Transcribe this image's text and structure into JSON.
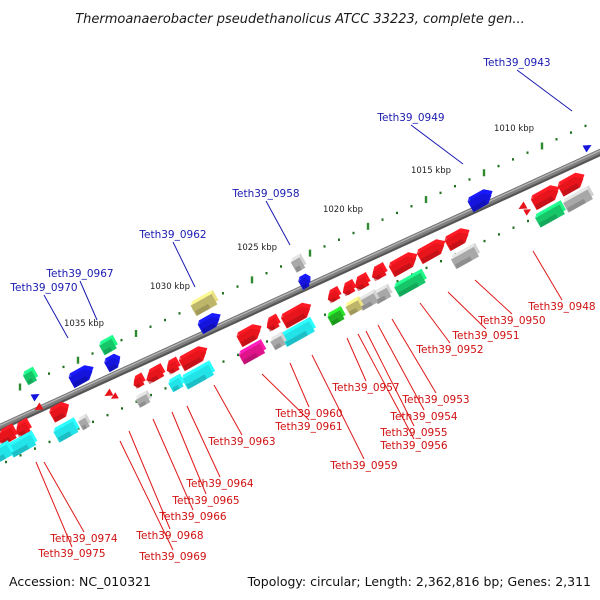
{
  "title": "Thermoanaerobacter pseudethanolicus ATCC 33223, complete gen...",
  "footer": {
    "accession": "Accession: NC_010321",
    "topology": "Topology: circular; Length: 2,362,816 bp; Genes: 2,311"
  },
  "colors": {
    "red": "#e8141c",
    "cyan": "#22e3e8",
    "blue": "#1414dd",
    "green": "#18c66a",
    "gray": "#a8a8a8",
    "olive": "#bdb56a",
    "magenta": "#e0148a",
    "leaf_green": "#22b322",
    "backbone": "#808080",
    "label_blue": "#1a1ab0",
    "label_red": "#d01010"
  },
  "scale_labels": [
    "1010 kbp",
    "1015 kbp",
    "1020 kbp",
    "1025 kbp",
    "1030 kbp",
    "1035 kbp"
  ],
  "top_labels": [
    "Teth39_0943",
    "Teth39_0949",
    "Teth39_0958",
    "Teth39_0962",
    "Teth39_0967",
    "Teth39_0970"
  ],
  "bottom_labels": [
    "Teth39_0948",
    "Teth39_0950",
    "Teth39_0951",
    "Teth39_0952",
    "Teth39_0953",
    "Teth39_0954",
    "Teth39_0955",
    "Teth39_0956",
    "Teth39_0957",
    "Teth39_0959",
    "Teth39_0960",
    "Teth39_0961",
    "Teth39_0963",
    "Teth39_0964",
    "Teth39_0965",
    "Teth39_0966",
    "Teth39_0968",
    "Teth39_0969",
    "Teth39_0974",
    "Teth39_0975"
  ]
}
